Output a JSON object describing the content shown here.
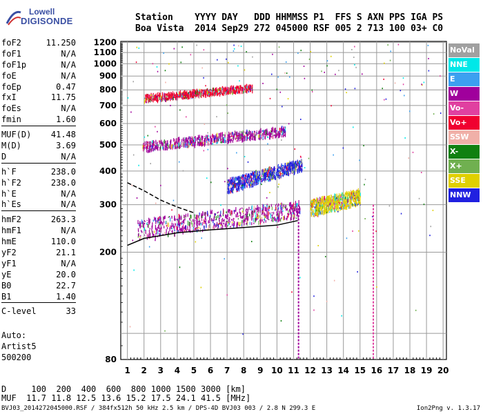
{
  "logo": {
    "line1": "Lowell",
    "line2": "DIGISONDE"
  },
  "header": {
    "line1": "Station    YYYY DAY   DDD HHMMSS P1  FFS S AXN PPS IGA PS",
    "line2": "Boa Vista  2014 Sep29 272 045000 RSF 005 2 713 100 03+ C0"
  },
  "params": {
    "group1": [
      {
        "name": "foF2",
        "value": "11.250"
      },
      {
        "name": "foF1",
        "value": "N/A"
      },
      {
        "name": "foF1p",
        "value": "N/A"
      },
      {
        "name": "foE",
        "value": "N/A"
      },
      {
        "name": "foEp",
        "value": "0.47"
      },
      {
        "name": "fxI",
        "value": "11.75"
      },
      {
        "name": "foEs",
        "value": "N/A"
      },
      {
        "name": "fmin",
        "value": "1.60"
      }
    ],
    "group2": [
      {
        "name": "MUF(D)",
        "value": "41.48"
      },
      {
        "name": "M(D)",
        "value": "3.69"
      },
      {
        "name": "D",
        "value": "N/A"
      }
    ],
    "group3": [
      {
        "name": "h`F",
        "value": "238.0"
      },
      {
        "name": "h`F2",
        "value": "238.0"
      },
      {
        "name": "h`E",
        "value": "N/A"
      },
      {
        "name": "h`Es",
        "value": "N/A"
      }
    ],
    "group4": [
      {
        "name": "hmF2",
        "value": "263.3"
      },
      {
        "name": "hmF1",
        "value": "N/A"
      },
      {
        "name": "hmE",
        "value": "110.0"
      },
      {
        "name": "yF2",
        "value": "21.1"
      },
      {
        "name": "yF1",
        "value": "N/A"
      },
      {
        "name": "yE",
        "value": "20.0"
      },
      {
        "name": "B0",
        "value": "22.7"
      },
      {
        "name": "B1",
        "value": "1.40"
      }
    ],
    "group5": [
      {
        "name": "C-level",
        "value": "33"
      }
    ]
  },
  "auto": {
    "line1": "Auto:",
    "line2": "Artist5",
    "line3": "500200"
  },
  "muf_table": {
    "line1": "D     100  200  400  600  800 1000 1500 3000 [km]",
    "line2": "MUF  11.7 11.8 12.5 13.6 15.2 17.5 24.1 41.5 [MHz]"
  },
  "footer": {
    "left": "BVJ03_2014272045000.RSF / 384fx512h 50 kHz 2.5 km / DPS-4D BVJ03 003 / 2.8 N 299.3 E",
    "right": "Ion2Png v. 1.3.17"
  },
  "legend": [
    {
      "label": "NoVal",
      "color": "#a0a0a0"
    },
    {
      "label": "NNE",
      "color": "#00e8e8"
    },
    {
      "label": "E",
      "color": "#3ca0f0"
    },
    {
      "label": "W",
      "color": "#a0009c"
    },
    {
      "label": "Vo-",
      "color": "#e040a0"
    },
    {
      "label": "Vo+",
      "color": "#f00030"
    },
    {
      "label": "SSW",
      "color": "#f0b0a8"
    },
    {
      "label": "X-",
      "color": "#108010"
    },
    {
      "label": "X+",
      "color": "#70b050"
    },
    {
      "label": "SSE",
      "color": "#e0d000"
    },
    {
      "label": "NNW",
      "color": "#2020e0"
    }
  ],
  "chart_data": {
    "type": "scatter",
    "x_ticks": [
      1,
      2,
      3,
      4,
      5,
      6,
      7,
      8,
      9,
      10,
      11,
      12,
      13,
      14,
      15,
      16,
      17,
      18,
      19,
      20
    ],
    "y_ticks": [
      80,
      200,
      300,
      400,
      500,
      600,
      700,
      800,
      900,
      1000,
      1100,
      1200
    ],
    "xlim": [
      0.6,
      20.2
    ],
    "ylim": [
      80,
      1210
    ],
    "y_scale": "log",
    "grid": true,
    "bands": [
      {
        "name": "F trace",
        "color": "#a0009c",
        "x_start": 1.6,
        "x_end": 11.4,
        "y_start": 242,
        "y_end": 288
      },
      {
        "name": "2F trace",
        "color": "#a0009c",
        "x_start": 1.9,
        "x_end": 10.5,
        "y_start": 490,
        "y_end": 560
      },
      {
        "name": "3F trace",
        "color": "#f00030",
        "x_start": 2.0,
        "x_end": 8.5,
        "y_start": 740,
        "y_end": 810
      },
      {
        "name": "NNW spread",
        "color": "#2020e0",
        "x_start": 7.0,
        "x_end": 11.5,
        "y_start": 350,
        "y_end": 420
      },
      {
        "name": "SSE cluster",
        "color": "#e0d000",
        "x_start": 12.0,
        "x_end": 15.0,
        "y_start": 290,
        "y_end": 320
      }
    ],
    "profile_solid": [
      [
        1.0,
        212
      ],
      [
        2.0,
        225
      ],
      [
        4.0,
        236
      ],
      [
        6.0,
        242
      ],
      [
        8.0,
        247
      ],
      [
        10.0,
        252
      ],
      [
        11.25,
        262
      ]
    ],
    "profile_dashed": [
      [
        1.0,
        362
      ],
      [
        2.0,
        338
      ],
      [
        3.0,
        312
      ],
      [
        4.0,
        294
      ],
      [
        5.0,
        280
      ]
    ]
  }
}
